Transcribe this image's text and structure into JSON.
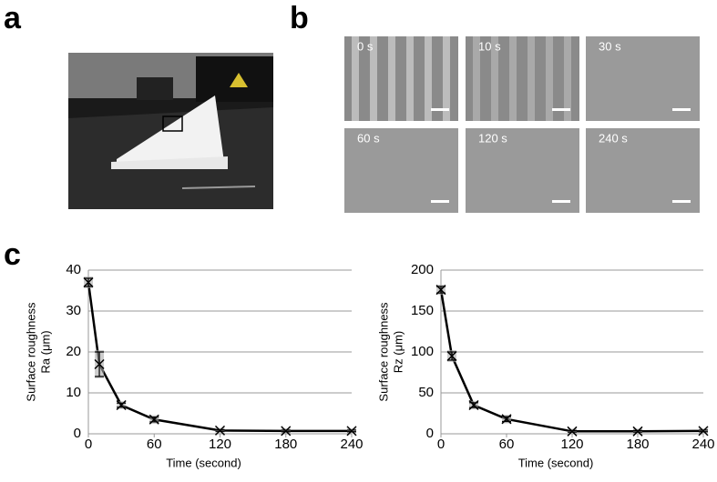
{
  "panel_labels": [
    "a",
    "b",
    "c"
  ],
  "sem_images": [
    "0 s",
    "10 s",
    "30 s",
    "60 s",
    "120 s",
    "240 s"
  ],
  "chart_data": [
    {
      "type": "line",
      "xlabel": "Time (second)",
      "ylabel": [
        "Surface roughness",
        "Ra (μm)"
      ],
      "x": [
        0,
        10,
        30,
        60,
        120,
        180,
        240
      ],
      "series": [
        {
          "color": "#000000",
          "values": [
            37,
            17,
            7,
            3.5,
            0.8,
            0.7,
            0.7
          ],
          "errors": [
            1,
            3,
            0.5,
            0.6,
            0.2,
            0.2,
            0.2
          ]
        }
      ],
      "xlim": [
        0,
        240
      ],
      "xticks": [
        0,
        60,
        120,
        180,
        240
      ],
      "ylim": [
        0,
        40
      ],
      "yticks": [
        0,
        10,
        20,
        30,
        40
      ],
      "grid": true
    },
    {
      "type": "line",
      "xlabel": "Time (second)",
      "ylabel": [
        "Surface roughness",
        "Rz (μm)"
      ],
      "x": [
        0,
        10,
        30,
        60,
        120,
        180,
        240
      ],
      "series": [
        {
          "color": "#000000",
          "values": [
            176,
            95,
            35,
            18,
            3,
            3,
            3.5
          ],
          "errors": [
            4,
            5,
            3,
            3,
            1,
            1,
            1
          ]
        }
      ],
      "xlim": [
        0,
        240
      ],
      "xticks": [
        0,
        60,
        120,
        180,
        240
      ],
      "ylim": [
        0,
        200
      ],
      "yticks": [
        0,
        50,
        100,
        150,
        200
      ],
      "grid": true
    }
  ]
}
